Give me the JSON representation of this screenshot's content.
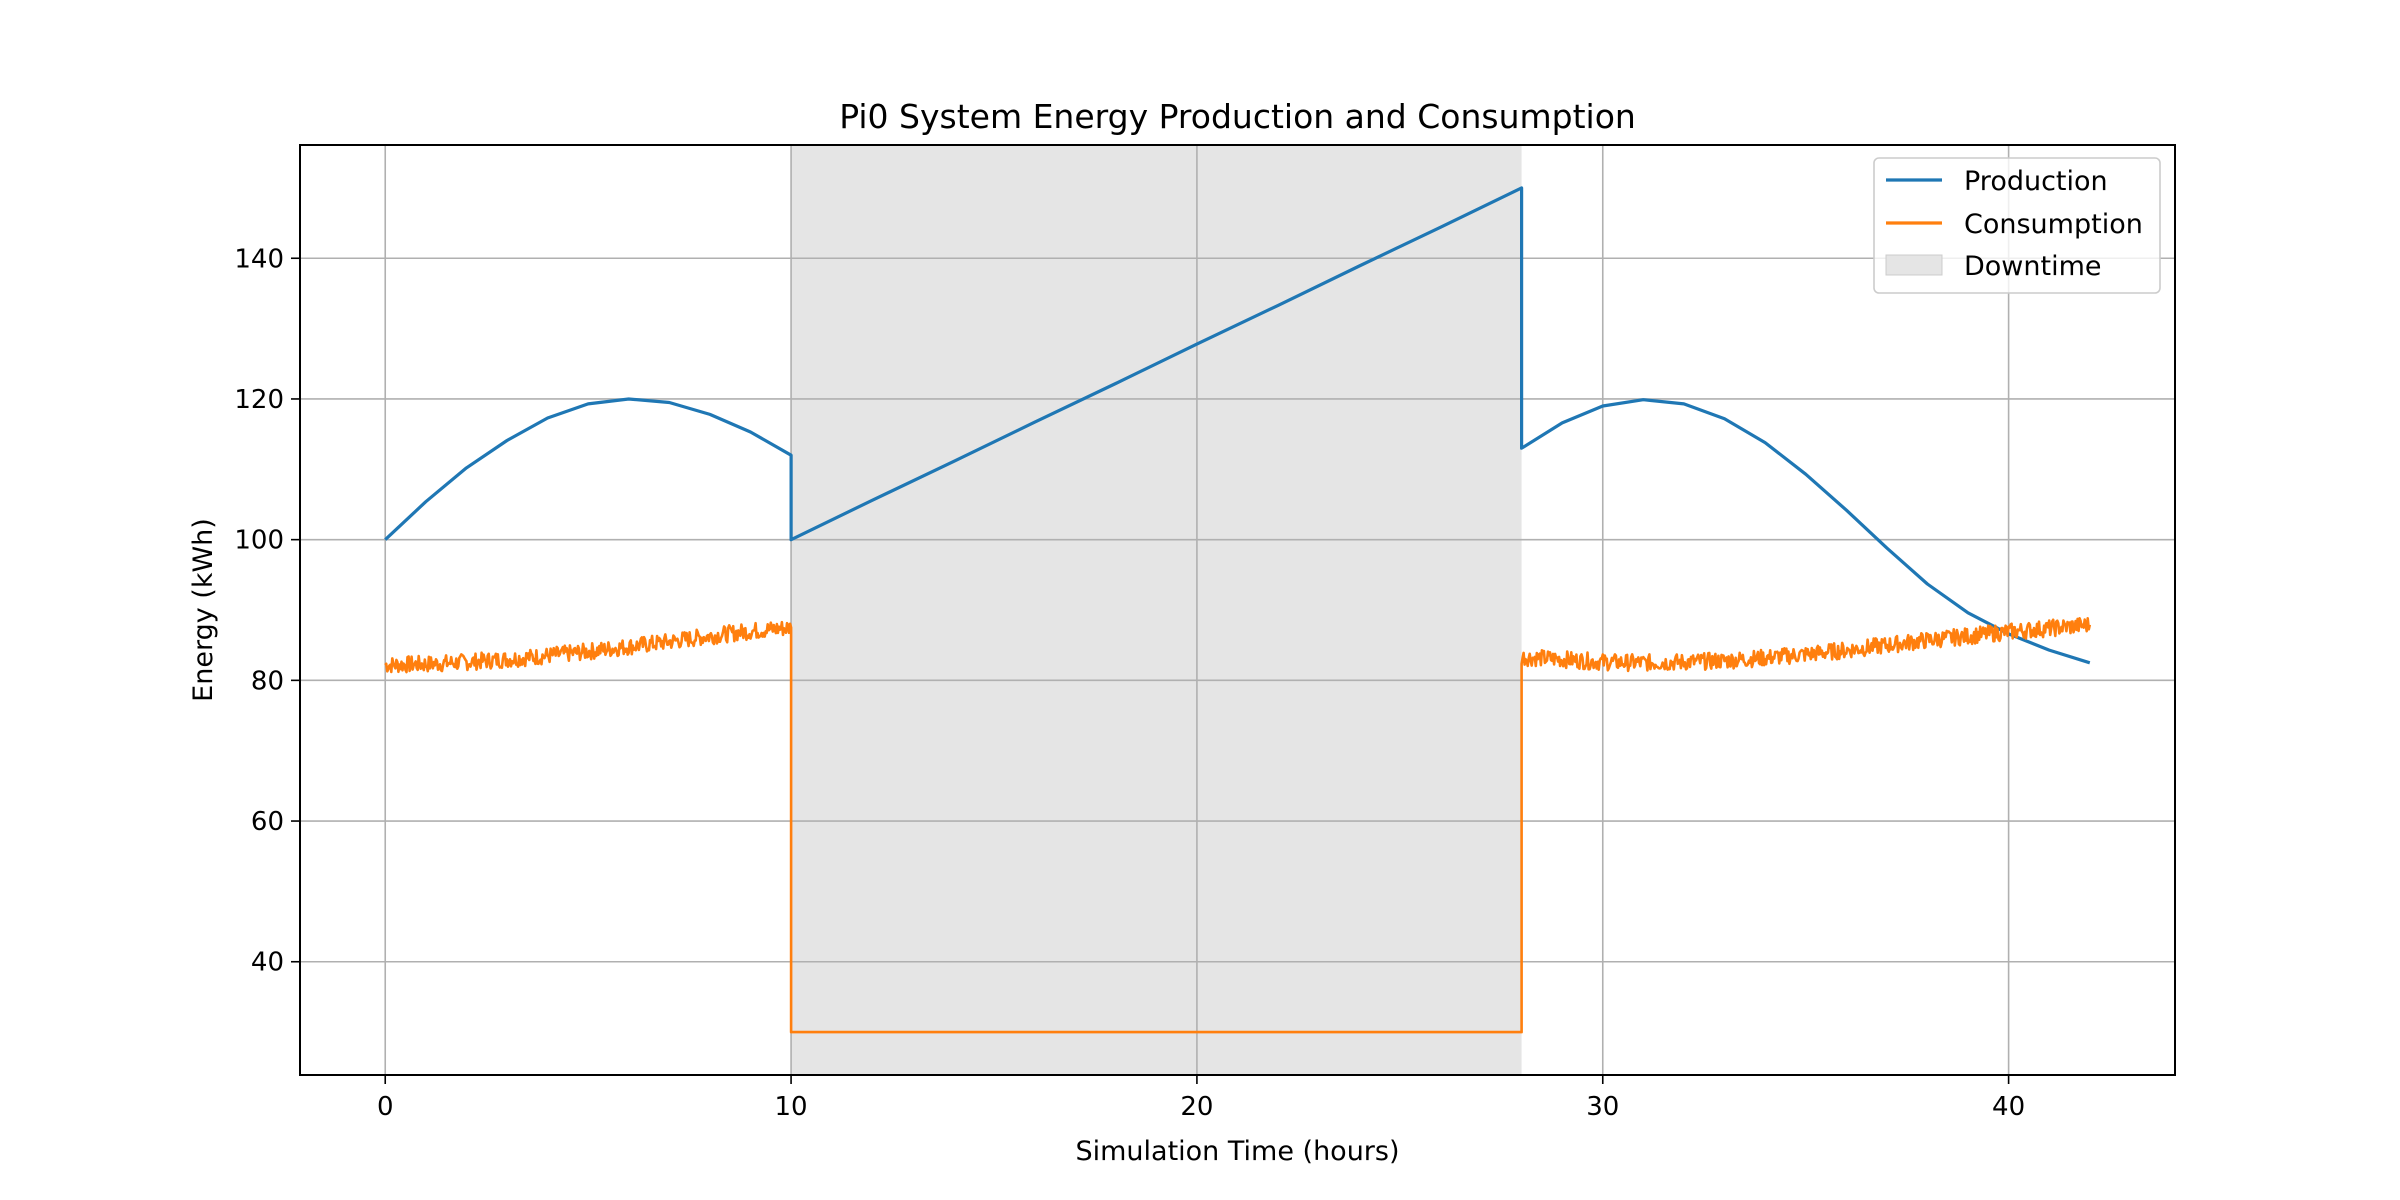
{
  "chart_data": {
    "type": "line",
    "title": "Pi0 System Energy Production and Consumption",
    "xlabel": "Simulation Time (hours)",
    "ylabel": "Energy (kWh)",
    "xlim": [
      -2.1,
      44.1
    ],
    "ylim": [
      23.9,
      156.1
    ],
    "xticks": [
      0,
      10,
      20,
      30,
      40
    ],
    "yticks": [
      40,
      60,
      80,
      100,
      120,
      140
    ],
    "grid": true,
    "legend_position": "top-right",
    "colors": {
      "production": "#1f77b4",
      "consumption": "#ff7f0e",
      "downtime": "#e5e5e5"
    },
    "downtime": {
      "name": "Downtime",
      "start": 10,
      "end": 28
    },
    "series": [
      {
        "name": "Production",
        "x": [
          0,
          1,
          2,
          3,
          4,
          5,
          6,
          7,
          8,
          9,
          10,
          10,
          12,
          14,
          16,
          18,
          20,
          22,
          24,
          26,
          28,
          28,
          29,
          30,
          31,
          32,
          33,
          34,
          35,
          36,
          37,
          38,
          39,
          40,
          41,
          42
        ],
        "values": [
          100,
          105.4,
          110.2,
          114.1,
          117.3,
          119.3,
          120,
          119.5,
          117.8,
          115.3,
          112,
          100,
          105.6,
          111.1,
          116.7,
          122.2,
          127.8,
          133.3,
          138.9,
          144.4,
          150,
          113,
          116.6,
          119,
          119.9,
          119.3,
          117.2,
          113.8,
          109.3,
          104.2,
          98.8,
          93.7,
          89.6,
          86.6,
          84.3,
          82.5
        ]
      },
      {
        "name": "Consumption",
        "x": [
          0,
          1,
          2,
          3,
          4,
          5,
          6,
          7,
          8,
          9,
          10,
          10,
          28,
          28,
          29,
          30,
          31,
          32,
          33,
          34,
          35,
          36,
          37,
          38,
          39,
          40,
          41,
          42
        ],
        "values": [
          82.2,
          82.3,
          82.6,
          83.0,
          83.5,
          84.1,
          84.8,
          85.5,
          86.3,
          87.0,
          87.5,
          30,
          30,
          83.3,
          83.0,
          82.6,
          82.5,
          82.6,
          82.8,
          83.2,
          83.7,
          84.3,
          85.0,
          85.7,
          86.3,
          86.9,
          87.4,
          87.9
        ]
      }
    ]
  }
}
